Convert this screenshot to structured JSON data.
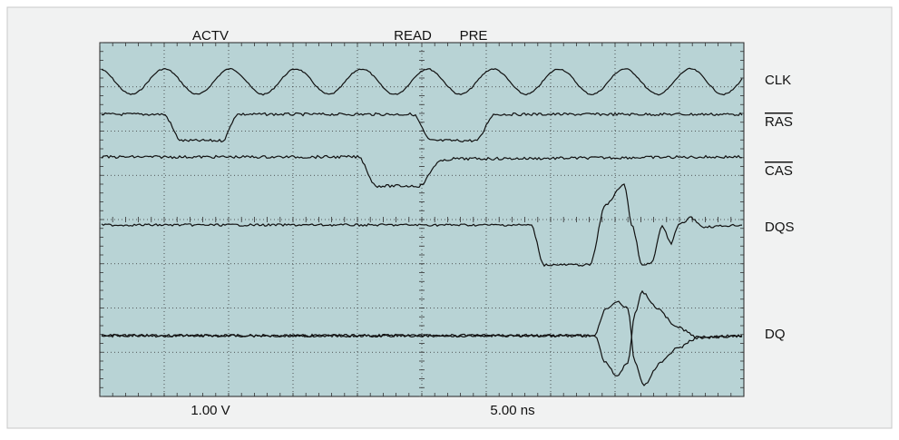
{
  "top_labels": [
    "ACTV",
    "READ",
    "PRE"
  ],
  "trace_labels": [
    "CLK",
    "RAS",
    "CAS",
    "DQS",
    "DQ"
  ],
  "scale_labels": {
    "voltage": "1.00 V",
    "time": "5.00 ns"
  }
}
